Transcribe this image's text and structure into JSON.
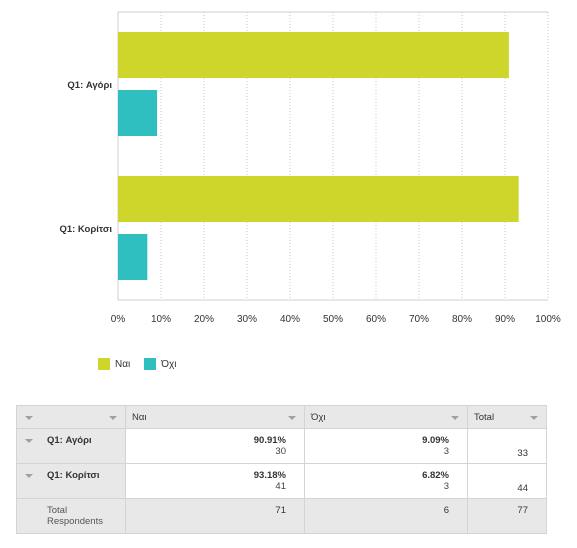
{
  "chart_data": {
    "type": "bar",
    "orientation": "horizontal",
    "categories": [
      "Q1: Αγόρι",
      "Q1: Κορίτσι"
    ],
    "series": [
      {
        "name": "Ναι",
        "values": [
          90.91,
          93.18
        ],
        "color": "#cfd62b"
      },
      {
        "name": "Όχι",
        "values": [
          9.09,
          6.82
        ],
        "color": "#2fbfc1"
      }
    ],
    "xlim": [
      0,
      100
    ],
    "x_ticks": [
      "0%",
      "10%",
      "20%",
      "30%",
      "40%",
      "50%",
      "60%",
      "70%",
      "80%",
      "90%",
      "100%"
    ],
    "grid": "vertical dotted",
    "legend_position": "bottom-left"
  },
  "legend": {
    "items": [
      {
        "label": "Ναι",
        "color": "#cfd62b"
      },
      {
        "label": "Όχι",
        "color": "#2fbfc1"
      }
    ]
  },
  "table": {
    "headers": [
      "",
      "Ναι",
      "Όχι",
      "Total"
    ],
    "rows": [
      {
        "label": "Q1: Αγόρι",
        "yes_pct": "90.91%",
        "yes_n": "30",
        "no_pct": "9.09%",
        "no_n": "3",
        "total": "33"
      },
      {
        "label": "Q1: Κορίτσι",
        "yes_pct": "93.18%",
        "yes_n": "41",
        "no_pct": "6.82%",
        "no_n": "3",
        "total": "44"
      }
    ],
    "footer": {
      "label": "Total Respondents",
      "yes": "71",
      "no": "6",
      "total": "77"
    }
  }
}
